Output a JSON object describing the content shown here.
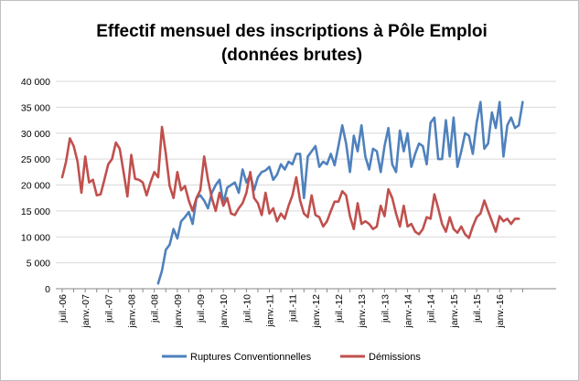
{
  "chart_data": {
    "type": "line",
    "title": "Effectif mensuel des inscriptions à Pôle Emploi",
    "subtitle": "(données brutes)",
    "xlabel": "",
    "ylabel": "",
    "ylim": [
      0,
      40000
    ],
    "y_ticks": [
      0,
      5000,
      10000,
      15000,
      20000,
      25000,
      30000,
      35000,
      40000
    ],
    "y_tick_labels": [
      "0",
      "5 000",
      "10 000",
      "15 000",
      "20 000",
      "25 000",
      "30 000",
      "35 000",
      "40 000"
    ],
    "x_start": "2006-07",
    "x_tick_labels": [
      "juil.-06",
      "janv.-07",
      "juil.-07",
      "janv.-08",
      "juil.-08",
      "janv.-09",
      "juil.-09",
      "janv.-10",
      "juil.-10",
      "janv.-11",
      "juil.-11",
      "janv.-12",
      "juil.-12",
      "janv.-13",
      "juil.-13",
      "janv.-14",
      "juil.-14",
      "janv.-15",
      "juil.-15",
      "janv.-16"
    ],
    "grid": true,
    "legend_position": "bottom",
    "series": [
      {
        "name": "Ruptures Conventionnelles",
        "color": "#4f81bd",
        "start_index": 25,
        "values": [
          1000,
          3500,
          7500,
          8500,
          11500,
          9700,
          13000,
          13800,
          14800,
          12500,
          17500,
          18000,
          17000,
          15500,
          18500,
          20000,
          21000,
          16500,
          19500,
          20000,
          20500,
          18500,
          23000,
          20500,
          22000,
          19000,
          21500,
          22500,
          22800,
          23500,
          21000,
          22000,
          24000,
          23000,
          24500,
          24000,
          26000,
          26000,
          17500,
          25500,
          26500,
          27500,
          23500,
          24500,
          24000,
          26000,
          23800,
          27500,
          31500,
          28000,
          22500,
          29500,
          26500,
          31500,
          25500,
          23000,
          27000,
          26500,
          22500,
          27500,
          31000,
          24000,
          22500,
          30500,
          26500,
          30000,
          23500,
          26000,
          28000,
          27500,
          24000,
          32000,
          33000,
          25000,
          25000,
          32500,
          25500,
          33000,
          23500,
          26500,
          30000,
          29500,
          26000,
          32000,
          36000,
          27000,
          28000,
          34000,
          31000,
          36000,
          25500,
          31500,
          33000,
          31000,
          31500,
          36000
        ]
      },
      {
        "name": "Démissions",
        "color": "#c0504d",
        "start_index": 0,
        "values": [
          21500,
          24500,
          29000,
          27500,
          24500,
          18500,
          25500,
          20500,
          21000,
          18000,
          18200,
          21000,
          24000,
          25000,
          28200,
          27000,
          22500,
          17800,
          25800,
          21200,
          21000,
          20500,
          18000,
          20500,
          22500,
          21500,
          31200,
          26000,
          19800,
          17500,
          22500,
          19000,
          19800,
          17000,
          15000,
          17500,
          19000,
          25500,
          21000,
          17500,
          15000,
          18500,
          16000,
          17500,
          14500,
          14200,
          15500,
          16500,
          18500,
          22500,
          17500,
          16500,
          14200,
          18500,
          14500,
          15500,
          13000,
          14500,
          13500,
          16000,
          18000,
          21500,
          17000,
          14500,
          13800,
          18000,
          14200,
          13800,
          12000,
          13000,
          15000,
          16800,
          16800,
          18800,
          18000,
          14000,
          11500,
          16500,
          12500,
          13000,
          12500,
          11500,
          12000,
          16000,
          14000,
          19200,
          17500,
          14500,
          12000,
          16000,
          12000,
          12500,
          11000,
          10500,
          11500,
          13800,
          13500,
          18200,
          15500,
          12500,
          11000,
          13800,
          11500,
          10800,
          12000,
          10500,
          9800,
          12000,
          13800,
          14500,
          17000,
          15000,
          13000,
          11000,
          14000,
          13000,
          13500,
          12500,
          13500,
          13500
        ]
      }
    ]
  }
}
